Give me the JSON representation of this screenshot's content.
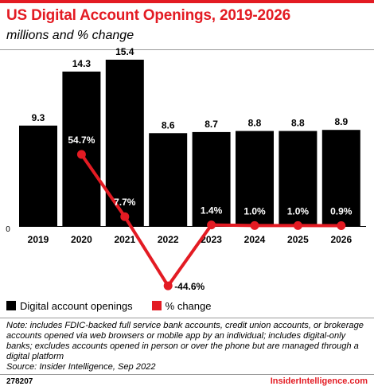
{
  "header": {
    "title": "US Digital Account Openings, 2019-2026",
    "subtitle": "millions and % change"
  },
  "chart_data": {
    "type": "bar",
    "categories": [
      "2019",
      "2020",
      "2021",
      "2022",
      "2023",
      "2024",
      "2025",
      "2026"
    ],
    "series": [
      {
        "name": "Digital account openings",
        "type": "bar",
        "values": [
          9.3,
          14.3,
          15.4,
          8.6,
          8.7,
          8.8,
          8.8,
          8.9
        ],
        "labels": [
          "9.3",
          "14.3",
          "15.4",
          "8.6",
          "8.7",
          "8.8",
          "8.8",
          "8.9"
        ],
        "color": "#000000"
      },
      {
        "name": "% change",
        "type": "line",
        "values": [
          null,
          54.7,
          7.7,
          -44.6,
          1.4,
          1.0,
          1.0,
          0.9
        ],
        "labels": [
          "",
          "54.7%",
          "7.7%",
          "-44.6%",
          "1.4%",
          "1.0%",
          "1.0%",
          "0.9%"
        ],
        "color": "#e31b23"
      }
    ],
    "axis_zero_label": "0",
    "grid": false,
    "legend_position": "bottom-left"
  },
  "footer": {
    "note": "Note: includes FDIC-backed full service bank accounts, credit union accounts, or brokerage accounts opened via web browsers or mobile app by an individual; includes digital-only banks; excludes accounts opened in person or over the phone but are managed through a digital platform",
    "source": "Source: Insider Intelligence, Sep 2022",
    "chart_id": "278207",
    "brand": "InsiderIntelligence.com"
  }
}
